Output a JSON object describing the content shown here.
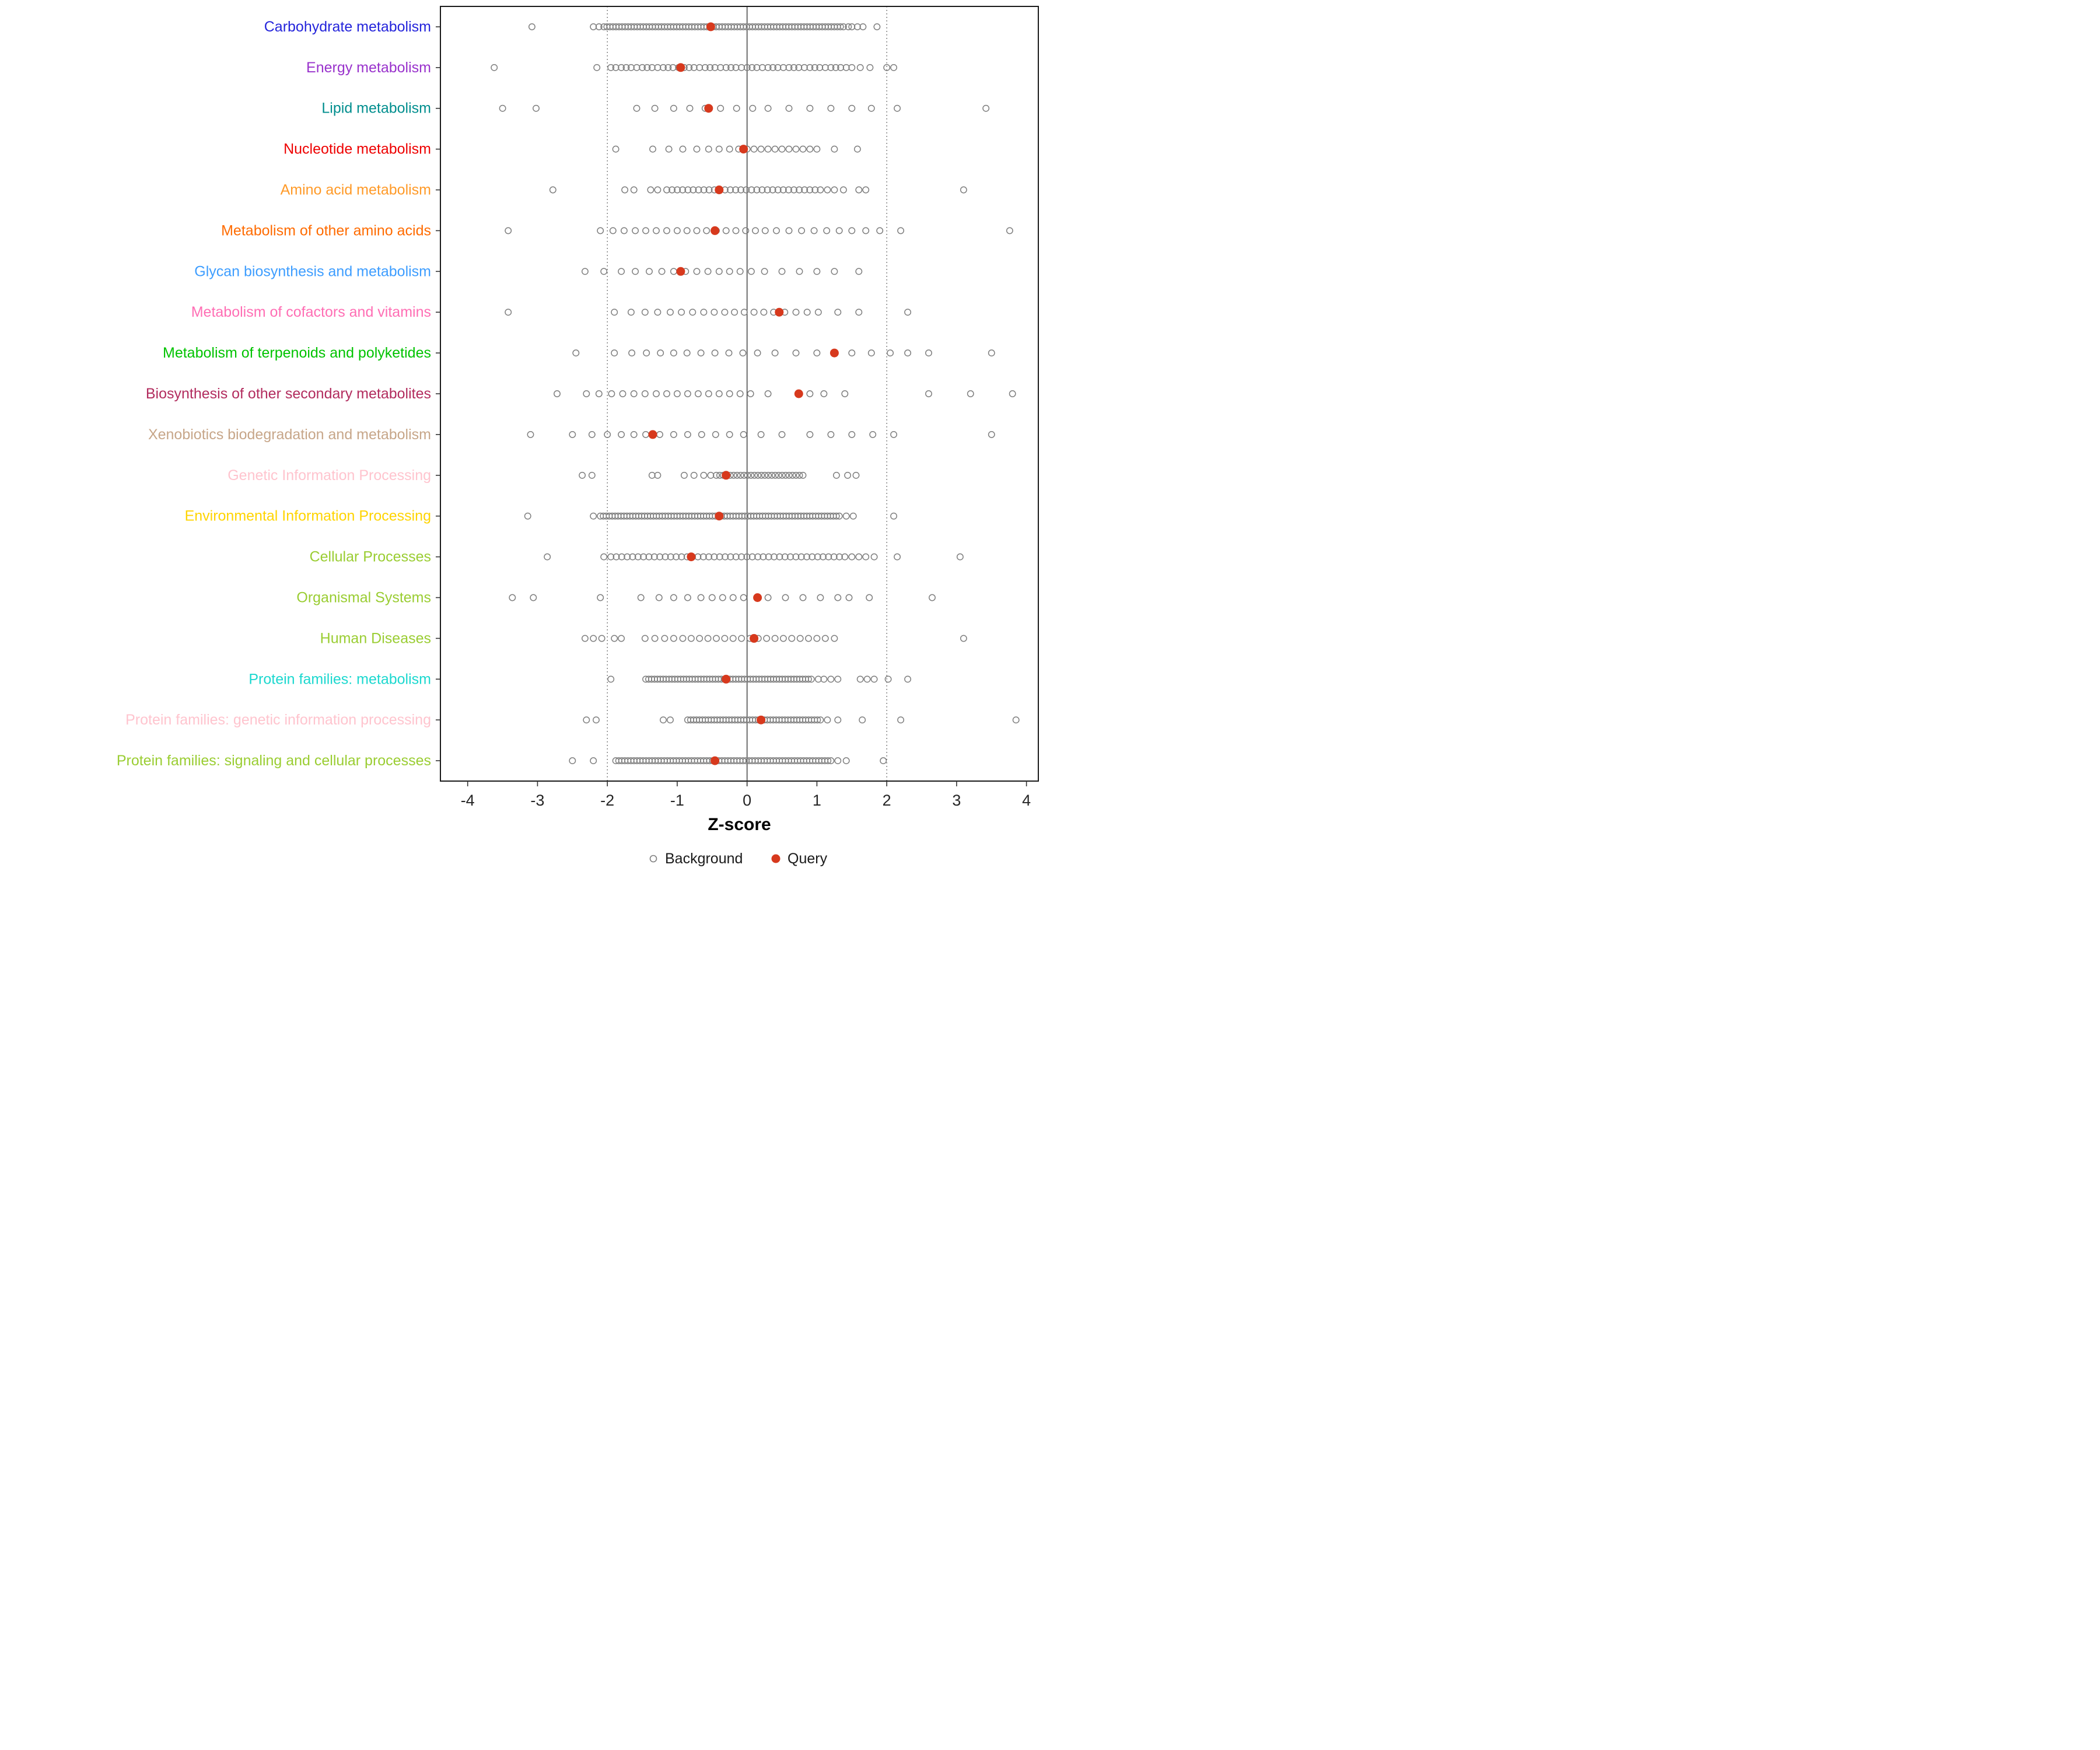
{
  "chart_data": {
    "type": "scatter",
    "title": "",
    "xlabel": "Z-score",
    "x_ticks": [
      -4,
      -3,
      -2,
      -1,
      0,
      1,
      2,
      3,
      4
    ],
    "xlim": [
      -4.39,
      4.17
    ],
    "grid": "off",
    "legend_position": "bottom",
    "reference_lines": {
      "solid": [
        0
      ],
      "dotted": [
        -2,
        2
      ]
    },
    "reference_line_color": "#4D4D4D",
    "background_color": "#7F7F7F",
    "query_color": "#D7391D",
    "legend": [
      {
        "label": "Background",
        "type": "open-circle",
        "color": "#7F7F7F"
      },
      {
        "label": "Query",
        "type": "filled-circle",
        "color": "#D7391D"
      }
    ],
    "rows": [
      {
        "label": "Carbohydrate metabolism",
        "color": "#2424DB",
        "query": -0.52,
        "bg_bands": [
          [
            -2.05,
            1.38,
            80
          ]
        ],
        "bg_points": [
          -3.08,
          -2.2,
          -2.12,
          1.45,
          1.5,
          1.58,
          1.66,
          1.86
        ]
      },
      {
        "label": "Energy metabolism",
        "color": "#9932CC",
        "query": -0.95,
        "bg_bands": [],
        "bg_points": [
          -3.62,
          -2.15,
          -1.95,
          -1.88,
          -1.8,
          -1.73,
          -1.66,
          -1.58,
          -1.5,
          -1.43,
          -1.36,
          -1.28,
          -1.2,
          -1.13,
          -1.06,
          -0.98,
          -0.9,
          -0.83,
          -0.76,
          -0.68,
          -0.6,
          -0.53,
          -0.46,
          -0.38,
          -0.3,
          -0.23,
          -0.16,
          -0.08,
          0.0,
          0.07,
          0.14,
          0.22,
          0.3,
          0.37,
          0.44,
          0.52,
          0.6,
          0.67,
          0.74,
          0.82,
          0.9,
          0.97,
          1.04,
          1.12,
          1.2,
          1.27,
          1.34,
          1.42,
          1.5,
          1.62,
          1.76,
          2.0,
          2.1
        ]
      },
      {
        "label": "Lipid metabolism",
        "color": "#008E8E",
        "query": -0.55,
        "bg_bands": [],
        "bg_points": [
          -3.5,
          -3.02,
          -1.58,
          -1.32,
          -1.05,
          -0.82,
          -0.6,
          -0.38,
          -0.15,
          0.08,
          0.3,
          0.6,
          0.9,
          1.2,
          1.5,
          1.78,
          2.15,
          3.42
        ]
      },
      {
        "label": "Nucleotide metabolism",
        "color": "#EE0000",
        "query": -0.05,
        "bg_bands": [],
        "bg_points": [
          -1.88,
          -1.35,
          -1.12,
          -0.92,
          -0.72,
          -0.55,
          -0.4,
          -0.25,
          -0.12,
          0.0,
          0.1,
          0.2,
          0.3,
          0.4,
          0.5,
          0.6,
          0.7,
          0.8,
          0.9,
          1.0,
          1.25,
          1.58
        ]
      },
      {
        "label": "Amino acid metabolism",
        "color": "#FF9A28",
        "query": -0.4,
        "bg_bands": [
          [
            -1.15,
            1.05,
            30
          ]
        ],
        "bg_points": [
          -2.78,
          -1.75,
          -1.62,
          -1.38,
          -1.28,
          1.15,
          1.25,
          1.38,
          1.6,
          1.7,
          3.1
        ]
      },
      {
        "label": "Metabolism of other amino acids",
        "color": "#FF6B00",
        "query": -0.46,
        "bg_bands": [],
        "bg_points": [
          -3.42,
          -2.1,
          -1.92,
          -1.76,
          -1.6,
          -1.45,
          -1.3,
          -1.15,
          -1.0,
          -0.86,
          -0.72,
          -0.58,
          -0.44,
          -0.3,
          -0.16,
          -0.02,
          0.12,
          0.26,
          0.42,
          0.6,
          0.78,
          0.96,
          1.14,
          1.32,
          1.5,
          1.7,
          1.9,
          2.2,
          3.76
        ]
      },
      {
        "label": "Glycan biosynthesis and metabolism",
        "color": "#3D9DFF",
        "query": -0.95,
        "bg_bands": [],
        "bg_points": [
          -2.32,
          -2.05,
          -1.8,
          -1.6,
          -1.4,
          -1.22,
          -1.05,
          -0.88,
          -0.72,
          -0.56,
          -0.4,
          -0.25,
          -0.1,
          0.06,
          0.25,
          0.5,
          0.75,
          1.0,
          1.25,
          1.6
        ]
      },
      {
        "label": "Metabolism of cofactors and vitamins",
        "color": "#FF6EB4",
        "query": 0.46,
        "bg_bands": [],
        "bg_points": [
          -3.42,
          -1.9,
          -1.66,
          -1.46,
          -1.28,
          -1.1,
          -0.94,
          -0.78,
          -0.62,
          -0.47,
          -0.32,
          -0.18,
          -0.04,
          0.1,
          0.24,
          0.38,
          0.54,
          0.7,
          0.86,
          1.02,
          1.3,
          1.6,
          2.3
        ]
      },
      {
        "label": "Metabolism of terpenoids and polyketides",
        "color": "#00C300",
        "query": 1.25,
        "bg_bands": [],
        "bg_points": [
          -2.45,
          -1.9,
          -1.65,
          -1.44,
          -1.24,
          -1.05,
          -0.86,
          -0.66,
          -0.46,
          -0.26,
          -0.06,
          0.15,
          0.4,
          0.7,
          1.0,
          1.5,
          1.78,
          2.05,
          2.3,
          2.6,
          3.5
        ]
      },
      {
        "label": "Biosynthesis of other secondary metabolites",
        "color": "#B22C5E",
        "query": 0.74,
        "bg_bands": [],
        "bg_points": [
          -2.72,
          -2.3,
          -2.12,
          -1.94,
          -1.78,
          -1.62,
          -1.46,
          -1.3,
          -1.15,
          -1.0,
          -0.85,
          -0.7,
          -0.55,
          -0.4,
          -0.25,
          -0.1,
          0.05,
          0.3,
          0.9,
          1.1,
          1.4,
          2.6,
          3.2,
          3.8
        ]
      },
      {
        "label": "Xenobiotics biodegradation and metabolism",
        "color": "#C7A689",
        "query": -1.35,
        "bg_bands": [],
        "bg_points": [
          -3.1,
          -2.5,
          -2.22,
          -2.0,
          -1.8,
          -1.62,
          -1.45,
          -1.25,
          -1.05,
          -0.85,
          -0.65,
          -0.45,
          -0.25,
          -0.05,
          0.2,
          0.5,
          0.9,
          1.2,
          1.5,
          1.8,
          2.1,
          3.5
        ]
      },
      {
        "label": "Genetic Information Processing",
        "color": "#FFC4CE",
        "query": -0.3,
        "bg_bands": [
          [
            -0.44,
            0.8,
            26
          ]
        ],
        "bg_points": [
          -2.36,
          -2.22,
          -1.36,
          -1.28,
          -0.9,
          -0.76,
          -0.62,
          -0.52,
          1.28,
          1.44,
          1.56
        ]
      },
      {
        "label": "Environmental Information Processing",
        "color": "#FFD400",
        "query": -0.4,
        "bg_bands": [
          [
            -2.1,
            1.32,
            82
          ]
        ],
        "bg_points": [
          -3.14,
          -2.2,
          1.42,
          1.52,
          2.1
        ]
      },
      {
        "label": "Cellular Processes",
        "color": "#9ACD32",
        "query": -0.8,
        "bg_bands": [
          [
            -1.95,
            1.4,
            44
          ]
        ],
        "bg_points": [
          -2.86,
          -2.05,
          1.5,
          1.6,
          1.7,
          1.82,
          2.15,
          3.05
        ]
      },
      {
        "label": "Organismal Systems",
        "color": "#9ACD32",
        "query": 0.15,
        "bg_bands": [],
        "bg_points": [
          -3.36,
          -3.06,
          -2.1,
          -1.52,
          -1.26,
          -1.05,
          -0.85,
          -0.66,
          -0.5,
          -0.35,
          -0.2,
          -0.05,
          0.3,
          0.55,
          0.8,
          1.05,
          1.3,
          1.46,
          1.75,
          2.65
        ]
      },
      {
        "label": "Human Diseases",
        "color": "#9ACD32",
        "query": 0.1,
        "bg_bands": [],
        "bg_points": [
          -2.32,
          -2.2,
          -2.08,
          -1.9,
          -1.8,
          -1.46,
          -1.32,
          -1.18,
          -1.05,
          -0.92,
          -0.8,
          -0.68,
          -0.56,
          -0.44,
          -0.32,
          -0.2,
          -0.08,
          0.04,
          0.16,
          0.28,
          0.4,
          0.52,
          0.64,
          0.76,
          0.88,
          1.0,
          1.12,
          1.25,
          3.1
        ]
      },
      {
        "label": "Protein families: metabolism",
        "color": "#1CD8CF",
        "query": -0.3,
        "bg_bands": [
          [
            -1.45,
            0.92,
            58
          ]
        ],
        "bg_points": [
          -1.95,
          1.02,
          1.1,
          1.2,
          1.3,
          1.62,
          1.72,
          1.82,
          2.02,
          2.3
        ]
      },
      {
        "label": "Protein families: genetic information processing",
        "color": "#FFC4CE",
        "query": 0.2,
        "bg_bands": [
          [
            -0.85,
            1.05,
            46
          ]
        ],
        "bg_points": [
          -2.3,
          -2.16,
          -1.2,
          -1.1,
          1.15,
          1.3,
          1.65,
          2.2,
          3.85
        ]
      },
      {
        "label": "Protein families: signaling and cellular processes",
        "color": "#9ACD32",
        "query": -0.46,
        "bg_bands": [
          [
            -1.88,
            1.2,
            72
          ]
        ],
        "bg_points": [
          -2.5,
          -2.2,
          1.3,
          1.42,
          1.95
        ]
      }
    ]
  }
}
